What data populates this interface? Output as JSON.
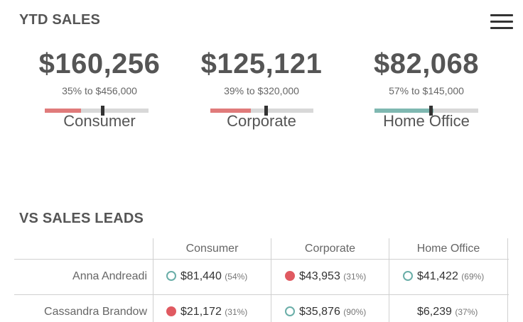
{
  "ytd": {
    "title": "YTD SALES",
    "kpis": [
      {
        "value": "$160,256",
        "subtitle": "35% to $456,000",
        "segment": "Consumer",
        "progress": 0.35,
        "bar_color": "#e07b7b"
      },
      {
        "value": "$125,121",
        "subtitle": "39% to $320,000",
        "segment": "Corporate",
        "progress": 0.39,
        "bar_color": "#e07b7b"
      },
      {
        "value": "$82,068",
        "subtitle": "57% to $145,000",
        "segment": "Home Office",
        "progress": 0.57,
        "bar_color": "#7fb8b1"
      }
    ]
  },
  "menu": {
    "icon": "hamburger-menu-icon"
  },
  "leads": {
    "title": "VS SALES LEADS",
    "columns": [
      "Consumer",
      "Corporate",
      "Home Office"
    ],
    "rows": [
      {
        "name": "Anna Andreadi",
        "cells": [
          {
            "amount": "$81,440",
            "pct": "(54%)",
            "status": "ring"
          },
          {
            "amount": "$43,953",
            "pct": "(31%)",
            "status": "fill"
          },
          {
            "amount": "$41,422",
            "pct": "(69%)",
            "status": "ring"
          }
        ]
      },
      {
        "name": "Cassandra Brandow",
        "cells": [
          {
            "amount": "$21,172",
            "pct": "(31%)",
            "status": "fill"
          },
          {
            "amount": "$35,876",
            "pct": "(90%)",
            "status": "ring"
          },
          {
            "amount": "$6,239",
            "pct": "(37%)",
            "status": "none"
          }
        ]
      }
    ]
  },
  "colors": {
    "below_target": "#e05a61",
    "on_target": "#6aaea8"
  }
}
